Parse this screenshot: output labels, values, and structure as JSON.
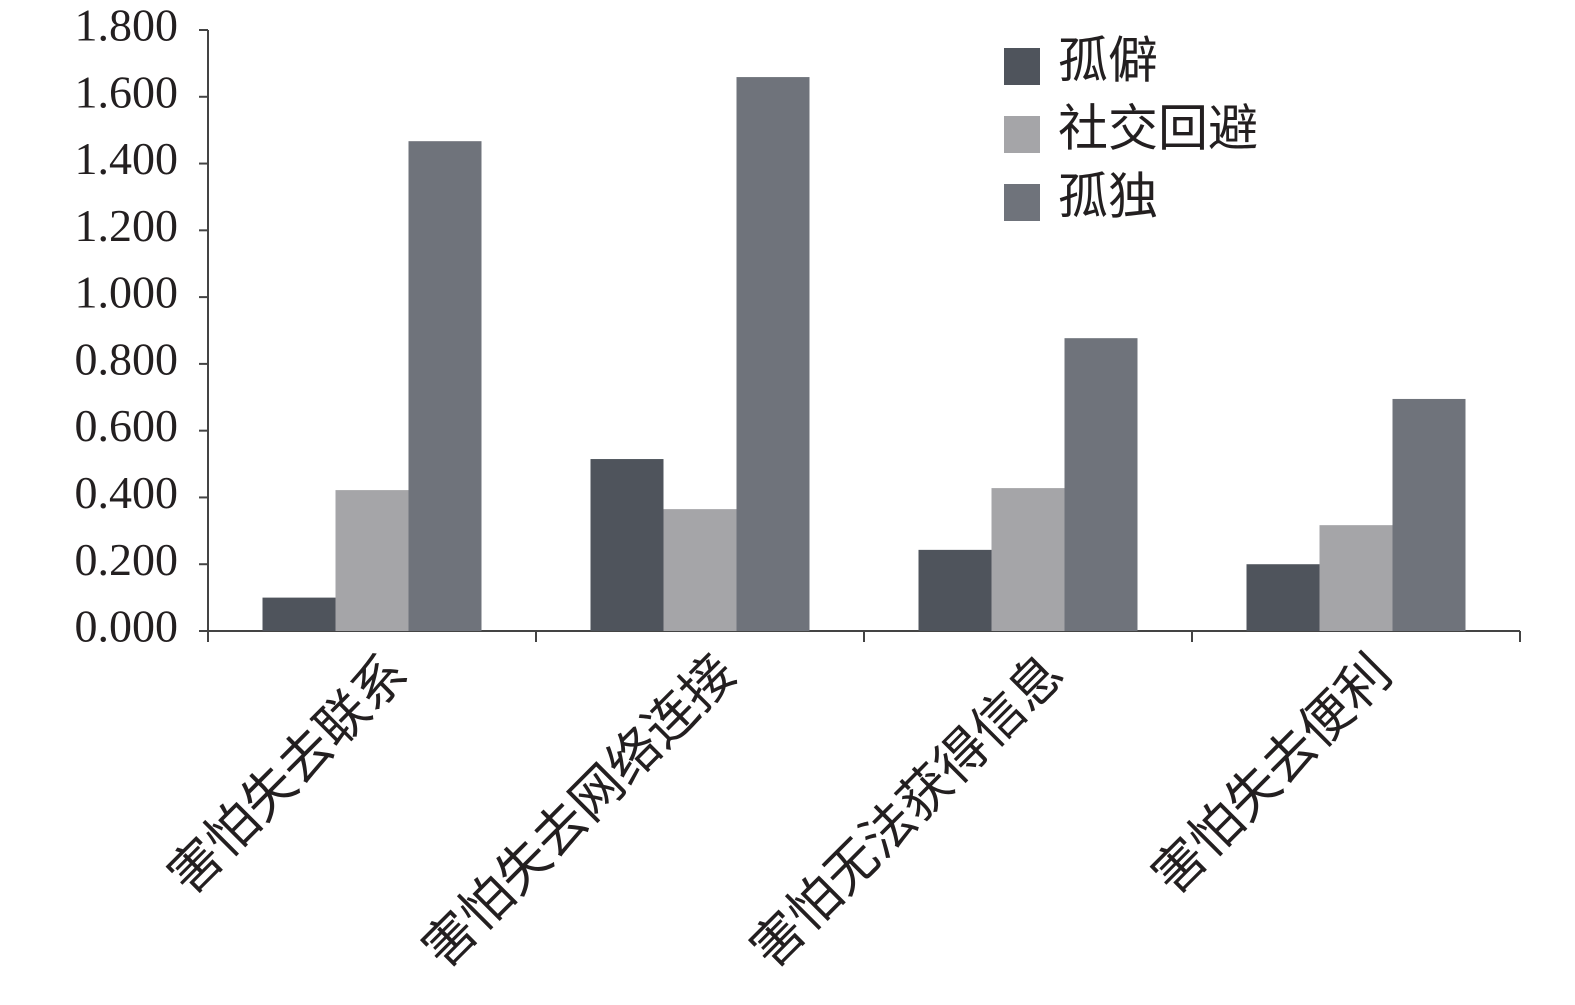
{
  "chart_data": {
    "type": "bar",
    "categories": [
      "害怕失去联系",
      "害怕失去网络连接",
      "害怕无法获得信息",
      "害怕失去便利"
    ],
    "series": [
      {
        "name": "孤僻",
        "color": "#4f545c",
        "values": [
          0.1,
          0.515,
          0.243,
          0.2
        ]
      },
      {
        "name": "社交回避",
        "color": "#a5a5a8",
        "values": [
          0.422,
          0.365,
          0.428,
          0.317
        ]
      },
      {
        "name": "孤独",
        "color": "#6f737b",
        "values": [
          1.467,
          1.659,
          0.877,
          0.695
        ]
      }
    ],
    "ylim": [
      0,
      1.8
    ],
    "yticks": [
      {
        "value": 0,
        "label": "0.000"
      },
      {
        "value": 0.2,
        "label": "0.200"
      },
      {
        "value": 0.4,
        "label": "0.400"
      },
      {
        "value": 0.6,
        "label": "0.600"
      },
      {
        "value": 0.8,
        "label": "0.800"
      },
      {
        "value": 1,
        "label": "1.000"
      },
      {
        "value": 1.2,
        "label": "1.200"
      },
      {
        "value": 1.4,
        "label": "1.400"
      },
      {
        "value": 1.6,
        "label": "1.600"
      },
      {
        "value": 1.8,
        "label": "1.800"
      }
    ],
    "grid": false
  }
}
